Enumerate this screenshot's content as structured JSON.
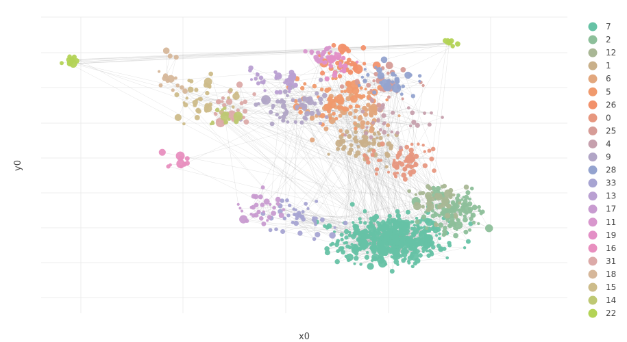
{
  "chart_data": {
    "type": "scatter",
    "subtype": "network-graph",
    "title": "",
    "xlabel": "x0",
    "ylabel": "y0",
    "grid": true,
    "x_tick_labels_shown": false,
    "y_tick_labels_shown": false,
    "legend_placement": "right",
    "legend": [
      {
        "label": "7",
        "color": "#66c2a5"
      },
      {
        "label": "2",
        "color": "#8dbf9a"
      },
      {
        "label": "12",
        "color": "#a9b795"
      },
      {
        "label": "1",
        "color": "#c9b08a"
      },
      {
        "label": "6",
        "color": "#e2a77d"
      },
      {
        "label": "5",
        "color": "#f09a6d"
      },
      {
        "label": "26",
        "color": "#f2916b"
      },
      {
        "label": "0",
        "color": "#e7977f"
      },
      {
        "label": "25",
        "color": "#d69c97"
      },
      {
        "label": "4",
        "color": "#c6a0ad"
      },
      {
        "label": "9",
        "color": "#b1a5c6"
      },
      {
        "label": "28",
        "color": "#94a3cf"
      },
      {
        "label": "33",
        "color": "#a7a4d2"
      },
      {
        "label": "13",
        "color": "#b9a0d2"
      },
      {
        "label": "17",
        "color": "#c89bd0"
      },
      {
        "label": "11",
        "color": "#d897cd"
      },
      {
        "label": "19",
        "color": "#e38fc6"
      },
      {
        "label": "16",
        "color": "#e88fbf"
      },
      {
        "label": "31",
        "color": "#dcaaa8"
      },
      {
        "label": "18",
        "color": "#d6b79a"
      },
      {
        "label": "15",
        "color": "#cdbc8a"
      },
      {
        "label": "14",
        "color": "#bec873"
      },
      {
        "label": "22",
        "color": "#b3d356"
      }
    ],
    "clusters": [
      {
        "label": "7",
        "cx": 6.0,
        "cy": -5.5,
        "sx": 1.9,
        "sy": 1.0,
        "n": 520
      },
      {
        "label": "2",
        "cx": 8.5,
        "cy": -4.2,
        "sx": 1.1,
        "sy": 0.9,
        "n": 120
      },
      {
        "label": "12",
        "cx": 7.6,
        "cy": -3.6,
        "sx": 1.2,
        "sy": 0.8,
        "n": 40
      },
      {
        "label": "1",
        "cx": 5.0,
        "cy": -1.0,
        "sx": 1.3,
        "sy": 0.8,
        "n": 60
      },
      {
        "label": "6",
        "cx": 4.5,
        "cy": 0.5,
        "sx": 1.5,
        "sy": 1.0,
        "n": 60
      },
      {
        "label": "5",
        "cx": 3.9,
        "cy": 1.2,
        "sx": 1.5,
        "sy": 1.0,
        "n": 70
      },
      {
        "label": "26",
        "cx": 4.2,
        "cy": 2.8,
        "sx": 0.9,
        "sy": 0.7,
        "n": 40
      },
      {
        "label": "0",
        "cx": 6.5,
        "cy": -1.8,
        "sx": 1.3,
        "sy": 0.8,
        "n": 60
      },
      {
        "label": "25",
        "cx": 5.5,
        "cy": 1.8,
        "sx": 1.2,
        "sy": 0.8,
        "n": 30
      },
      {
        "label": "4",
        "cx": 5.8,
        "cy": 0.3,
        "sx": 1.4,
        "sy": 0.9,
        "n": 30
      },
      {
        "label": "9",
        "cx": 2.0,
        "cy": 0.8,
        "sx": 1.4,
        "sy": 0.9,
        "n": 60
      },
      {
        "label": "28",
        "cx": 6.0,
        "cy": 2.0,
        "sx": 1.2,
        "sy": 0.7,
        "n": 30
      },
      {
        "label": "33",
        "cx": 2.5,
        "cy": -4.5,
        "sx": 1.4,
        "sy": 0.6,
        "n": 40
      },
      {
        "label": "13",
        "cx": 1.2,
        "cy": 2.0,
        "sx": 1.0,
        "sy": 0.7,
        "n": 30
      },
      {
        "label": "17",
        "cx": 0.8,
        "cy": -4.0,
        "sx": 1.0,
        "sy": 0.6,
        "n": 30
      },
      {
        "label": "11",
        "cx": 3.2,
        "cy": 3.2,
        "sx": 0.6,
        "sy": 0.5,
        "n": 25
      },
      {
        "label": "19",
        "cx": 3.8,
        "cy": 2.8,
        "sx": 0.6,
        "sy": 0.5,
        "n": 20
      },
      {
        "label": "16",
        "cx": -2.5,
        "cy": -1.8,
        "sx": 0.6,
        "sy": 0.4,
        "n": 10
      },
      {
        "label": "31",
        "cx": -0.5,
        "cy": 0.8,
        "sx": 1.0,
        "sy": 0.7,
        "n": 25
      },
      {
        "label": "18",
        "cx": -2.8,
        "cy": 2.3,
        "sx": 0.6,
        "sy": 1.2,
        "n": 14
      },
      {
        "label": "15",
        "cx": -1.5,
        "cy": 1.2,
        "sx": 1.2,
        "sy": 1.2,
        "n": 35
      },
      {
        "label": "14",
        "cx": -0.6,
        "cy": 0.4,
        "sx": 0.6,
        "sy": 0.5,
        "n": 15
      },
      {
        "label": "22",
        "cx": 8.3,
        "cy": 3.8,
        "sx": 0.3,
        "sy": 0.2,
        "n": 10
      },
      {
        "label": "22",
        "cx": -6.8,
        "cy": 2.9,
        "sx": 0.4,
        "sy": 0.3,
        "n": 14
      }
    ],
    "xlim": [
      -8,
      13
    ],
    "ylim": [
      -9,
      5
    ]
  }
}
